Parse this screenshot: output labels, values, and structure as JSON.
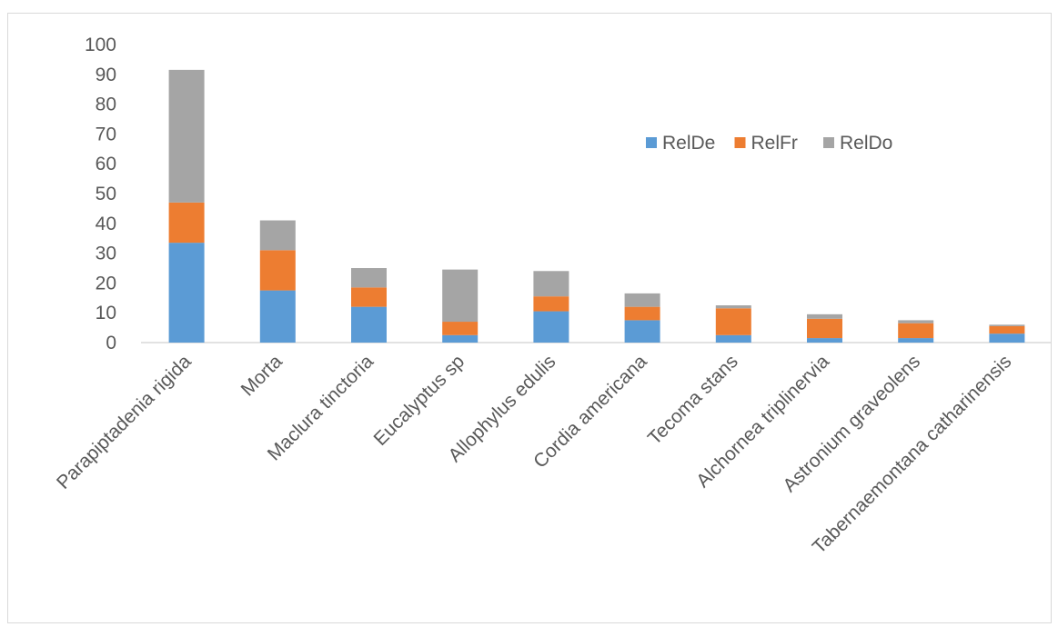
{
  "chart_data": {
    "type": "bar",
    "stacked": true,
    "title": "",
    "xlabel": "",
    "ylabel": "",
    "ylim": [
      0,
      100
    ],
    "yticks": [
      0,
      10,
      20,
      30,
      40,
      50,
      60,
      70,
      80,
      90,
      100
    ],
    "grid": false,
    "legend_position": "top-right",
    "categories": [
      "Parapiptadenia rigida",
      "Morta",
      "Maclura tinctoria",
      "Eucalyptus sp",
      "Allophylus edulis",
      "Cordia americana",
      "Tecoma stans",
      "Alchornea triplinervia",
      "Astronium graveolens",
      "Tabernaemontana catharinensis"
    ],
    "series": [
      {
        "name": "RelDe",
        "color": "#5b9bd5",
        "values": [
          33.5,
          17.5,
          12.0,
          2.5,
          10.5,
          7.5,
          2.5,
          1.5,
          1.5,
          3.0
        ]
      },
      {
        "name": "RelFr",
        "color": "#ed7d31",
        "values": [
          13.5,
          13.5,
          6.5,
          4.5,
          5.0,
          4.5,
          9.0,
          6.5,
          5.0,
          2.5
        ]
      },
      {
        "name": "RelDo",
        "color": "#a5a5a5",
        "values": [
          44.5,
          10.0,
          6.5,
          17.5,
          8.5,
          4.5,
          1.0,
          1.5,
          1.0,
          0.5
        ]
      }
    ]
  }
}
